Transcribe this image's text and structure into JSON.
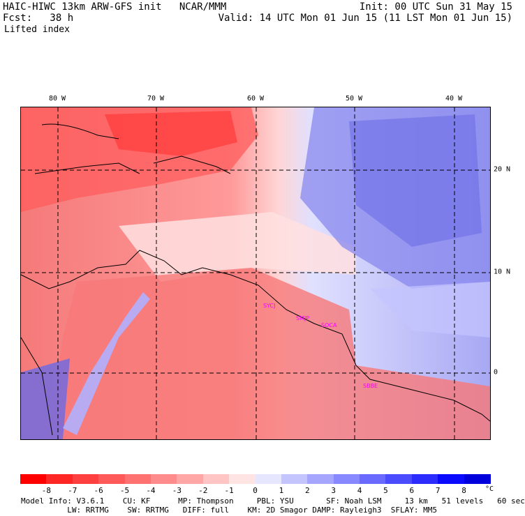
{
  "header": {
    "left1": "HAIC-HIWC 13km ARW-GFS init   NCAR/MMM",
    "left2": "Fcst:   38 h",
    "right1": "Init: 00 UTC Sun 31 May 15",
    "right2": "Valid: 14 UTC Mon 01 Jun 15 (11 LST Mon 01 Jun 15)",
    "field": "Lifted index"
  },
  "map": {
    "lon_labels": [
      "80 W",
      "70 W",
      "60 W",
      "50 W",
      "40 W"
    ],
    "lat_labels": [
      "20 N",
      "10 N",
      "0"
    ],
    "stations": [
      {
        "id": "SYCJ",
        "color": "#ff00ff"
      },
      {
        "id": "SMJP",
        "color": "#ff00ff"
      },
      {
        "id": "SOCA",
        "color": "#ff00ff"
      },
      {
        "id": "SBBE",
        "color": "#ff00ff"
      }
    ],
    "colors": {
      "warm_strong": "#ff3a3a",
      "warm_mid": "#f57a7a",
      "warm_light": "#ffc8c8",
      "neutral": "#ffffff",
      "cool_light": "#c8c8ff",
      "cool_mid": "#8a8af0",
      "cool_strong": "#5252e6"
    }
  },
  "colorbar": {
    "labels": [
      "-8",
      "-7",
      "-6",
      "-5",
      "-4",
      "-3",
      "-2",
      "-1",
      "0",
      "1",
      "2",
      "3",
      "4",
      "5",
      "6",
      "7",
      "8"
    ],
    "unit": "°C",
    "colors": [
      "#ff0000",
      "#ff2626",
      "#ff4040",
      "#ff5a5a",
      "#ff7272",
      "#ff8c8c",
      "#ffa6a6",
      "#ffc4c4",
      "#ffe4e4",
      "#e6e6ff",
      "#c4c4ff",
      "#a6a6ff",
      "#8888ff",
      "#6a6aff",
      "#4c4cff",
      "#2c2cff",
      "#0a0aff",
      "#0000dd"
    ]
  },
  "footer": {
    "line1": "Model Info: V3.6.1    CU: KF      MP: Thompson     PBL: YSU       SF: Noah LSM     13 km   51 levels   60 sec",
    "line2": "          LW: RRTMG    SW: RRTMG   DIFF: full    KM: 2D Smagor DAMP: Rayleigh3  SFLAY: MM5"
  }
}
